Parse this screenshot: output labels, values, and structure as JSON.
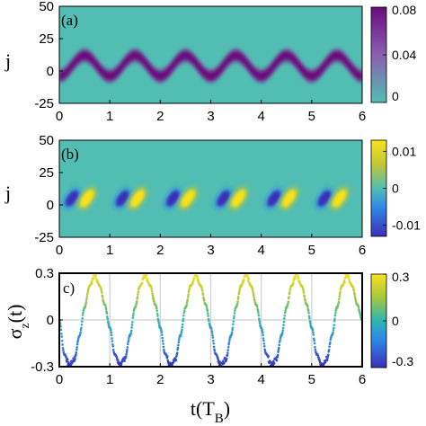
{
  "chart_data": [
    {
      "type": "heatmap",
      "panel_label": "(a)",
      "ylabel": "j",
      "xlim": [
        0,
        6
      ],
      "ylim": [
        -25,
        50
      ],
      "xticks": [
        "0",
        "1",
        "2",
        "3",
        "4",
        "5",
        "6"
      ],
      "yticks": [
        "50",
        "25",
        "0",
        "-25"
      ],
      "colorbar": {
        "ticks": [
          "0.08",
          "0.04",
          "0"
        ],
        "range": [
          0,
          0.08
        ],
        "colors": [
          "#52bdb3",
          "#8a5fb0",
          "#6a0b7c"
        ]
      },
      "background_color": "#52bdb3",
      "band": {
        "center_amplitude": 8,
        "center_offset": 4,
        "period": 1,
        "phase_peak": 0.5,
        "width": 6,
        "peak_value": 0.08
      },
      "grid": false
    },
    {
      "type": "heatmap",
      "panel_label": "(b)",
      "ylabel": "j",
      "xlim": [
        0,
        6
      ],
      "ylim": [
        -25,
        50
      ],
      "xticks": [
        "0",
        "1",
        "2",
        "3",
        "4",
        "5",
        "6"
      ],
      "yticks": [
        "50",
        "25",
        "0",
        "-25"
      ],
      "colorbar": {
        "ticks": [
          "0.01",
          "0",
          "-0.01"
        ],
        "range": [
          -0.013,
          0.013
        ],
        "colors": [
          "#3b2fb8",
          "#2e88e8",
          "#52bdb3",
          "#c2c734",
          "#f9e21e"
        ]
      },
      "background_color": "#52bdb3",
      "positive_peaks_t": [
        0.5,
        1.5,
        2.5,
        3.5,
        4.5,
        5.5
      ],
      "negative_peaks_t": [
        0.1,
        1.1,
        2.1,
        3.1,
        4.1,
        5.1
      ],
      "grid": false
    },
    {
      "type": "scatter",
      "panel_label": "c)",
      "ylabel": "σz(t)",
      "xlabel": "t(TB)",
      "xlim": [
        0,
        6
      ],
      "ylim": [
        -0.3,
        0.3
      ],
      "xticks": [
        "0",
        "1",
        "2",
        "3",
        "4",
        "5",
        "6"
      ],
      "yticks": [
        "0.3",
        "0",
        "-0.3"
      ],
      "colorbar": {
        "ticks": [
          "0.3",
          "0",
          "-0.3"
        ],
        "range": [
          -0.3,
          0.3
        ],
        "colors": [
          "#3b2fb8",
          "#2e88e8",
          "#2bb6b0",
          "#a5c83c",
          "#f9e21e"
        ]
      },
      "x": [
        0,
        0.1,
        0.2,
        0.3,
        0.4,
        0.5,
        0.6,
        0.7,
        0.8,
        0.9,
        1.0,
        1.1,
        1.2,
        1.3,
        1.4,
        1.5,
        1.6,
        1.7,
        1.8,
        1.9,
        2.0,
        2.1,
        2.2,
        2.3,
        2.4,
        2.5,
        2.6,
        2.7,
        2.8,
        2.9,
        3.0,
        3.1,
        3.2,
        3.3,
        3.4,
        3.5,
        3.6,
        3.7,
        3.8,
        3.9,
        4.0,
        4.1,
        4.2,
        4.3,
        4.4,
        4.5,
        4.6,
        4.7,
        4.8,
        4.9,
        5.0,
        5.1,
        5.2,
        5.3,
        5.4,
        5.5,
        5.6,
        5.7,
        5.8,
        5.9,
        6.0
      ],
      "y": [
        0,
        -0.22,
        -0.29,
        -0.25,
        -0.1,
        0.08,
        0.22,
        0.29,
        0.22,
        0.1,
        -0.05,
        -0.22,
        -0.29,
        -0.25,
        -0.1,
        0.08,
        0.22,
        0.29,
        0.22,
        0.1,
        -0.05,
        -0.22,
        -0.29,
        -0.25,
        -0.1,
        0.08,
        0.22,
        0.29,
        0.22,
        0.1,
        -0.05,
        -0.22,
        -0.29,
        -0.25,
        -0.1,
        0.08,
        0.22,
        0.29,
        0.22,
        0.1,
        -0.05,
        -0.22,
        -0.29,
        -0.25,
        -0.1,
        0.08,
        0.22,
        0.29,
        0.22,
        0.1,
        -0.05,
        -0.22,
        -0.29,
        -0.25,
        -0.1,
        0.08,
        0.22,
        0.29,
        0.22,
        0.1,
        0
      ],
      "grid": true
    }
  ]
}
